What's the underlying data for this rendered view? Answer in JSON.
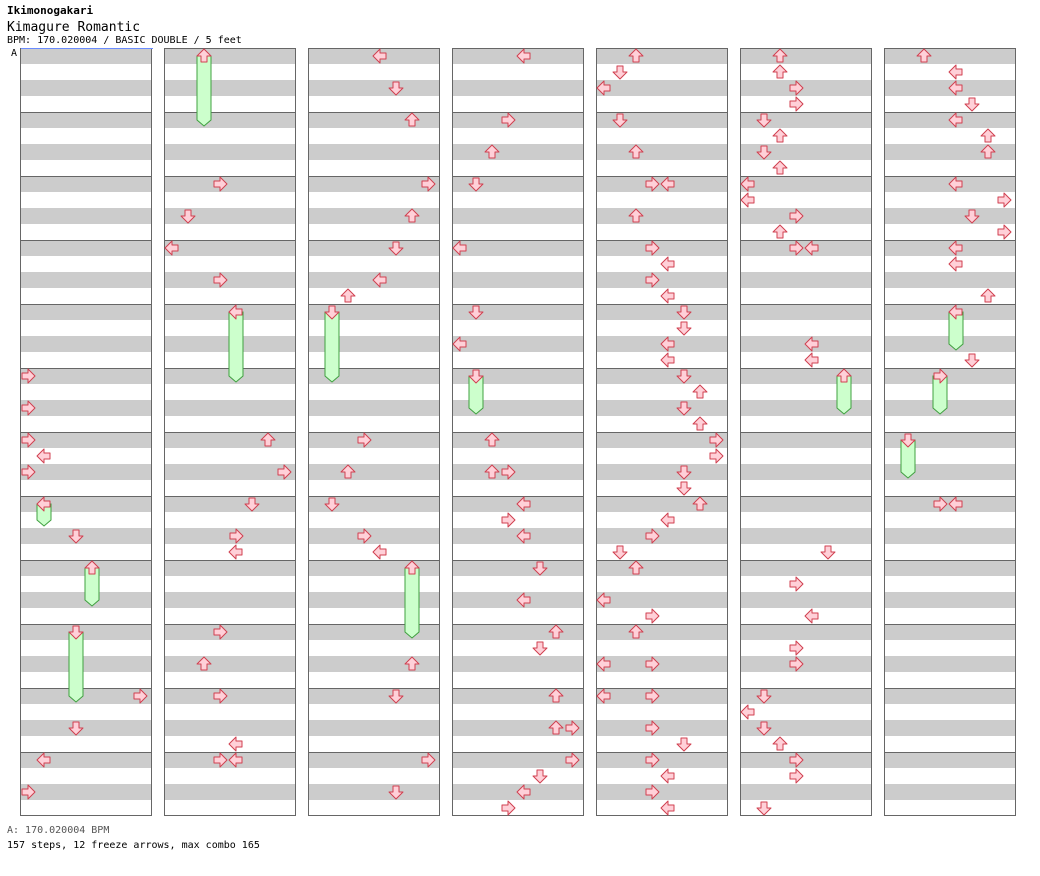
{
  "header": {
    "artist": "Ikimonogakari",
    "title": "Kimagure Romantic",
    "info": "BPM: 170.020004 / BASIC DOUBLE / 5 feet"
  },
  "bpm_marker": "A",
  "footer": {
    "bpm_legend": "A: 170.020004 BPM",
    "stats": "157 steps, 12 freeze arrows, max combo 165"
  },
  "colors": {
    "stripe": "#cccccc",
    "arrow_fill": "#ffd0d8",
    "arrow_stroke": "#d04050",
    "freeze_fill": "#ccffcc",
    "freeze_stroke": "#40a040",
    "bpm_line": "#6a8cff"
  },
  "chart_data": {
    "type": "step-chart",
    "style": "double",
    "lanes": 8,
    "columns": 7,
    "measures_per_column": 12,
    "rows_per_measure": 8,
    "notes": [
      {
        "col": 0,
        "m": 5,
        "r": 0,
        "lane": 0,
        "dir": "right"
      },
      {
        "col": 0,
        "m": 5,
        "r": 2,
        "lane": 0,
        "dir": "right"
      },
      {
        "col": 0,
        "m": 6,
        "r": 0,
        "lane": 0,
        "dir": "right"
      },
      {
        "col": 0,
        "m": 6,
        "r": 1,
        "lane": 1,
        "dir": "left"
      },
      {
        "col": 0,
        "m": 6,
        "r": 2,
        "lane": 0,
        "dir": "right"
      },
      {
        "col": 0,
        "m": 7,
        "r": 0,
        "lane": 1,
        "dir": "left",
        "freeze": 1
      },
      {
        "col": 0,
        "m": 7,
        "r": 2,
        "lane": 3,
        "dir": "down"
      },
      {
        "col": 0,
        "m": 8,
        "r": 0,
        "lane": 4,
        "dir": "up",
        "freeze": 2
      },
      {
        "col": 0,
        "m": 9,
        "r": 0,
        "lane": 3,
        "dir": "down",
        "freeze": 4
      },
      {
        "col": 0,
        "m": 10,
        "r": 0,
        "lane": 7,
        "dir": "right"
      },
      {
        "col": 0,
        "m": 10,
        "r": 2,
        "lane": 3,
        "dir": "down"
      },
      {
        "col": 0,
        "m": 11,
        "r": 0,
        "lane": 1,
        "dir": "left"
      },
      {
        "col": 0,
        "m": 11,
        "r": 2,
        "lane": 0,
        "dir": "right"
      },
      {
        "col": 1,
        "m": 0,
        "r": 0,
        "lane": 2,
        "dir": "up",
        "freeze": 4
      },
      {
        "col": 1,
        "m": 2,
        "r": 0,
        "lane": 3,
        "dir": "right"
      },
      {
        "col": 1,
        "m": 2,
        "r": 2,
        "lane": 1,
        "dir": "down"
      },
      {
        "col": 1,
        "m": 3,
        "r": 0,
        "lane": 0,
        "dir": "left"
      },
      {
        "col": 1,
        "m": 3,
        "r": 2,
        "lane": 3,
        "dir": "right"
      },
      {
        "col": 1,
        "m": 4,
        "r": 0,
        "lane": 4,
        "dir": "left",
        "freeze": 4
      },
      {
        "col": 1,
        "m": 6,
        "r": 0,
        "lane": 6,
        "dir": "up"
      },
      {
        "col": 1,
        "m": 6,
        "r": 2,
        "lane": 7,
        "dir": "right"
      },
      {
        "col": 1,
        "m": 7,
        "r": 0,
        "lane": 5,
        "dir": "down"
      },
      {
        "col": 1,
        "m": 7,
        "r": 2,
        "lane": 4,
        "dir": "right"
      },
      {
        "col": 1,
        "m": 7,
        "r": 3,
        "lane": 4,
        "dir": "left"
      },
      {
        "col": 1,
        "m": 9,
        "r": 0,
        "lane": 3,
        "dir": "right"
      },
      {
        "col": 1,
        "m": 9,
        "r": 2,
        "lane": 2,
        "dir": "up"
      },
      {
        "col": 1,
        "m": 10,
        "r": 0,
        "lane": 3,
        "dir": "right"
      },
      {
        "col": 1,
        "m": 10,
        "r": 3,
        "lane": 4,
        "dir": "left"
      },
      {
        "col": 1,
        "m": 11,
        "r": 0,
        "lane": 3,
        "dir": "right"
      },
      {
        "col": 1,
        "m": 11,
        "r": 0,
        "lane": 4,
        "dir": "left"
      },
      {
        "col": 2,
        "m": 0,
        "r": 0,
        "lane": 4,
        "dir": "left"
      },
      {
        "col": 2,
        "m": 0,
        "r": 2,
        "lane": 5,
        "dir": "down"
      },
      {
        "col": 2,
        "m": 1,
        "r": 0,
        "lane": 6,
        "dir": "up"
      },
      {
        "col": 2,
        "m": 2,
        "r": 0,
        "lane": 7,
        "dir": "right"
      },
      {
        "col": 2,
        "m": 2,
        "r": 2,
        "lane": 6,
        "dir": "up"
      },
      {
        "col": 2,
        "m": 3,
        "r": 0,
        "lane": 5,
        "dir": "down"
      },
      {
        "col": 2,
        "m": 3,
        "r": 2,
        "lane": 4,
        "dir": "left"
      },
      {
        "col": 2,
        "m": 3,
        "r": 3,
        "lane": 2,
        "dir": "up"
      },
      {
        "col": 2,
        "m": 4,
        "r": 0,
        "lane": 1,
        "dir": "down",
        "freeze": 4
      },
      {
        "col": 2,
        "m": 6,
        "r": 0,
        "lane": 3,
        "dir": "right"
      },
      {
        "col": 2,
        "m": 6,
        "r": 2,
        "lane": 2,
        "dir": "up"
      },
      {
        "col": 2,
        "m": 7,
        "r": 0,
        "lane": 1,
        "dir": "down"
      },
      {
        "col": 2,
        "m": 7,
        "r": 2,
        "lane": 3,
        "dir": "right"
      },
      {
        "col": 2,
        "m": 7,
        "r": 3,
        "lane": 4,
        "dir": "left"
      },
      {
        "col": 2,
        "m": 8,
        "r": 0,
        "lane": 6,
        "dir": "up",
        "freeze": 4
      },
      {
        "col": 2,
        "m": 9,
        "r": 2,
        "lane": 6,
        "dir": "up"
      },
      {
        "col": 2,
        "m": 10,
        "r": 0,
        "lane": 5,
        "dir": "down"
      },
      {
        "col": 2,
        "m": 11,
        "r": 0,
        "lane": 7,
        "dir": "right"
      },
      {
        "col": 2,
        "m": 11,
        "r": 2,
        "lane": 5,
        "dir": "down"
      },
      {
        "col": 3,
        "m": 0,
        "r": 0,
        "lane": 4,
        "dir": "left"
      },
      {
        "col": 3,
        "m": 1,
        "r": 0,
        "lane": 3,
        "dir": "right"
      },
      {
        "col": 3,
        "m": 1,
        "r": 2,
        "lane": 2,
        "dir": "up"
      },
      {
        "col": 3,
        "m": 2,
        "r": 0,
        "lane": 1,
        "dir": "down"
      },
      {
        "col": 3,
        "m": 3,
        "r": 0,
        "lane": 0,
        "dir": "left"
      },
      {
        "col": 3,
        "m": 4,
        "r": 0,
        "lane": 1,
        "dir": "down"
      },
      {
        "col": 3,
        "m": 4,
        "r": 2,
        "lane": 0,
        "dir": "left"
      },
      {
        "col": 3,
        "m": 5,
        "r": 0,
        "lane": 1,
        "dir": "down",
        "freeze": 2
      },
      {
        "col": 3,
        "m": 6,
        "r": 0,
        "lane": 2,
        "dir": "up"
      },
      {
        "col": 3,
        "m": 6,
        "r": 2,
        "lane": 2,
        "dir": "up"
      },
      {
        "col": 3,
        "m": 6,
        "r": 2,
        "lane": 3,
        "dir": "right"
      },
      {
        "col": 3,
        "m": 7,
        "r": 0,
        "lane": 4,
        "dir": "left"
      },
      {
        "col": 3,
        "m": 7,
        "r": 1,
        "lane": 3,
        "dir": "right"
      },
      {
        "col": 3,
        "m": 7,
        "r": 2,
        "lane": 4,
        "dir": "left"
      },
      {
        "col": 3,
        "m": 8,
        "r": 0,
        "lane": 5,
        "dir": "down"
      },
      {
        "col": 3,
        "m": 8,
        "r": 2,
        "lane": 4,
        "dir": "left"
      },
      {
        "col": 3,
        "m": 9,
        "r": 0,
        "lane": 6,
        "dir": "up"
      },
      {
        "col": 3,
        "m": 9,
        "r": 1,
        "lane": 5,
        "dir": "down"
      },
      {
        "col": 3,
        "m": 10,
        "r": 0,
        "lane": 6,
        "dir": "up"
      },
      {
        "col": 3,
        "m": 10,
        "r": 2,
        "lane": 6,
        "dir": "up"
      },
      {
        "col": 3,
        "m": 10,
        "r": 2,
        "lane": 7,
        "dir": "right"
      },
      {
        "col": 3,
        "m": 11,
        "r": 0,
        "lane": 7,
        "dir": "right"
      },
      {
        "col": 3,
        "m": 11,
        "r": 1,
        "lane": 5,
        "dir": "down"
      },
      {
        "col": 3,
        "m": 11,
        "r": 2,
        "lane": 4,
        "dir": "left"
      },
      {
        "col": 3,
        "m": 11,
        "r": 3,
        "lane": 3,
        "dir": "right"
      },
      {
        "col": 4,
        "m": 0,
        "r": 0,
        "lane": 2,
        "dir": "up"
      },
      {
        "col": 4,
        "m": 0,
        "r": 1,
        "lane": 1,
        "dir": "down"
      },
      {
        "col": 4,
        "m": 0,
        "r": 2,
        "lane": 0,
        "dir": "left"
      },
      {
        "col": 4,
        "m": 1,
        "r": 0,
        "lane": 1,
        "dir": "down"
      },
      {
        "col": 4,
        "m": 1,
        "r": 2,
        "lane": 2,
        "dir": "up"
      },
      {
        "col": 4,
        "m": 2,
        "r": 0,
        "lane": 3,
        "dir": "right"
      },
      {
        "col": 4,
        "m": 2,
        "r": 0,
        "lane": 4,
        "dir": "left"
      },
      {
        "col": 4,
        "m": 2,
        "r": 2,
        "lane": 2,
        "dir": "up"
      },
      {
        "col": 4,
        "m": 3,
        "r": 0,
        "lane": 3,
        "dir": "right"
      },
      {
        "col": 4,
        "m": 3,
        "r": 1,
        "lane": 4,
        "dir": "left"
      },
      {
        "col": 4,
        "m": 3,
        "r": 2,
        "lane": 3,
        "dir": "right"
      },
      {
        "col": 4,
        "m": 3,
        "r": 3,
        "lane": 4,
        "dir": "left"
      },
      {
        "col": 4,
        "m": 4,
        "r": 0,
        "lane": 5,
        "dir": "down"
      },
      {
        "col": 4,
        "m": 4,
        "r": 1,
        "lane": 5,
        "dir": "down"
      },
      {
        "col": 4,
        "m": 4,
        "r": 2,
        "lane": 4,
        "dir": "left"
      },
      {
        "col": 4,
        "m": 4,
        "r": 3,
        "lane": 4,
        "dir": "left"
      },
      {
        "col": 4,
        "m": 5,
        "r": 0,
        "lane": 5,
        "dir": "down"
      },
      {
        "col": 4,
        "m": 5,
        "r": 1,
        "lane": 6,
        "dir": "up"
      },
      {
        "col": 4,
        "m": 5,
        "r": 2,
        "lane": 5,
        "dir": "down"
      },
      {
        "col": 4,
        "m": 5,
        "r": 3,
        "lane": 6,
        "dir": "up"
      },
      {
        "col": 4,
        "m": 6,
        "r": 0,
        "lane": 7,
        "dir": "right"
      },
      {
        "col": 4,
        "m": 6,
        "r": 1,
        "lane": 7,
        "dir": "right"
      },
      {
        "col": 4,
        "m": 6,
        "r": 2,
        "lane": 5,
        "dir": "down"
      },
      {
        "col": 4,
        "m": 6,
        "r": 3,
        "lane": 5,
        "dir": "down"
      },
      {
        "col": 4,
        "m": 7,
        "r": 0,
        "lane": 6,
        "dir": "up"
      },
      {
        "col": 4,
        "m": 7,
        "r": 1,
        "lane": 4,
        "dir": "left"
      },
      {
        "col": 4,
        "m": 7,
        "r": 2,
        "lane": 3,
        "dir": "right"
      },
      {
        "col": 4,
        "m": 7,
        "r": 3,
        "lane": 1,
        "dir": "down"
      },
      {
        "col": 4,
        "m": 8,
        "r": 0,
        "lane": 2,
        "dir": "up"
      },
      {
        "col": 4,
        "m": 8,
        "r": 2,
        "lane": 0,
        "dir": "left"
      },
      {
        "col": 4,
        "m": 8,
        "r": 3,
        "lane": 3,
        "dir": "right"
      },
      {
        "col": 4,
        "m": 9,
        "r": 0,
        "lane": 2,
        "dir": "up"
      },
      {
        "col": 4,
        "m": 9,
        "r": 2,
        "lane": 0,
        "dir": "left"
      },
      {
        "col": 4,
        "m": 9,
        "r": 2,
        "lane": 3,
        "dir": "right"
      },
      {
        "col": 4,
        "m": 10,
        "r": 0,
        "lane": 0,
        "dir": "left"
      },
      {
        "col": 4,
        "m": 10,
        "r": 0,
        "lane": 3,
        "dir": "right"
      },
      {
        "col": 4,
        "m": 10,
        "r": 2,
        "lane": 3,
        "dir": "right"
      },
      {
        "col": 4,
        "m": 10,
        "r": 3,
        "lane": 5,
        "dir": "down"
      },
      {
        "col": 4,
        "m": 11,
        "r": 0,
        "lane": 3,
        "dir": "right"
      },
      {
        "col": 4,
        "m": 11,
        "r": 1,
        "lane": 4,
        "dir": "left"
      },
      {
        "col": 4,
        "m": 11,
        "r": 2,
        "lane": 3,
        "dir": "right"
      },
      {
        "col": 4,
        "m": 11,
        "r": 3,
        "lane": 4,
        "dir": "left"
      },
      {
        "col": 5,
        "m": 0,
        "r": 0,
        "lane": 2,
        "dir": "up"
      },
      {
        "col": 5,
        "m": 0,
        "r": 1,
        "lane": 2,
        "dir": "up"
      },
      {
        "col": 5,
        "m": 0,
        "r": 2,
        "lane": 3,
        "dir": "right"
      },
      {
        "col": 5,
        "m": 0,
        "r": 3,
        "lane": 3,
        "dir": "right"
      },
      {
        "col": 5,
        "m": 1,
        "r": 0,
        "lane": 1,
        "dir": "down"
      },
      {
        "col": 5,
        "m": 1,
        "r": 1,
        "lane": 2,
        "dir": "up"
      },
      {
        "col": 5,
        "m": 1,
        "r": 2,
        "lane": 1,
        "dir": "down"
      },
      {
        "col": 5,
        "m": 1,
        "r": 3,
        "lane": 2,
        "dir": "up"
      },
      {
        "col": 5,
        "m": 2,
        "r": 0,
        "lane": 0,
        "dir": "left"
      },
      {
        "col": 5,
        "m": 2,
        "r": 1,
        "lane": 0,
        "dir": "left"
      },
      {
        "col": 5,
        "m": 2,
        "r": 2,
        "lane": 3,
        "dir": "right"
      },
      {
        "col": 5,
        "m": 2,
        "r": 3,
        "lane": 2,
        "dir": "up"
      },
      {
        "col": 5,
        "m": 3,
        "r": 0,
        "lane": 3,
        "dir": "right"
      },
      {
        "col": 5,
        "m": 3,
        "r": 0,
        "lane": 4,
        "dir": "left"
      },
      {
        "col": 5,
        "m": 4,
        "r": 2,
        "lane": 4,
        "dir": "left"
      },
      {
        "col": 5,
        "m": 4,
        "r": 3,
        "lane": 4,
        "dir": "left"
      },
      {
        "col": 5,
        "m": 5,
        "r": 0,
        "lane": 6,
        "dir": "up",
        "freeze": 2
      },
      {
        "col": 5,
        "m": 7,
        "r": 3,
        "lane": 5,
        "dir": "down"
      },
      {
        "col": 5,
        "m": 8,
        "r": 1,
        "lane": 3,
        "dir": "right"
      },
      {
        "col": 5,
        "m": 8,
        "r": 3,
        "lane": 4,
        "dir": "left"
      },
      {
        "col": 5,
        "m": 9,
        "r": 1,
        "lane": 3,
        "dir": "right"
      },
      {
        "col": 5,
        "m": 9,
        "r": 2,
        "lane": 3,
        "dir": "right"
      },
      {
        "col": 5,
        "m": 10,
        "r": 0,
        "lane": 1,
        "dir": "down"
      },
      {
        "col": 5,
        "m": 10,
        "r": 1,
        "lane": 0,
        "dir": "left"
      },
      {
        "col": 5,
        "m": 10,
        "r": 2,
        "lane": 1,
        "dir": "down"
      },
      {
        "col": 5,
        "m": 10,
        "r": 3,
        "lane": 2,
        "dir": "up"
      },
      {
        "col": 5,
        "m": 11,
        "r": 0,
        "lane": 3,
        "dir": "right"
      },
      {
        "col": 5,
        "m": 11,
        "r": 1,
        "lane": 3,
        "dir": "right"
      },
      {
        "col": 5,
        "m": 11,
        "r": 3,
        "lane": 1,
        "dir": "down"
      },
      {
        "col": 6,
        "m": 0,
        "r": 0,
        "lane": 2,
        "dir": "up"
      },
      {
        "col": 6,
        "m": 0,
        "r": 1,
        "lane": 4,
        "dir": "left"
      },
      {
        "col": 6,
        "m": 0,
        "r": 2,
        "lane": 4,
        "dir": "left"
      },
      {
        "col": 6,
        "m": 0,
        "r": 3,
        "lane": 5,
        "dir": "down"
      },
      {
        "col": 6,
        "m": 1,
        "r": 0,
        "lane": 4,
        "dir": "left"
      },
      {
        "col": 6,
        "m": 1,
        "r": 1,
        "lane": 6,
        "dir": "up"
      },
      {
        "col": 6,
        "m": 1,
        "r": 2,
        "lane": 6,
        "dir": "up"
      },
      {
        "col": 6,
        "m": 2,
        "r": 0,
        "lane": 4,
        "dir": "left"
      },
      {
        "col": 6,
        "m": 2,
        "r": 1,
        "lane": 7,
        "dir": "right"
      },
      {
        "col": 6,
        "m": 2,
        "r": 2,
        "lane": 5,
        "dir": "down"
      },
      {
        "col": 6,
        "m": 2,
        "r": 3,
        "lane": 7,
        "dir": "right"
      },
      {
        "col": 6,
        "m": 3,
        "r": 0,
        "lane": 4,
        "dir": "left"
      },
      {
        "col": 6,
        "m": 3,
        "r": 1,
        "lane": 4,
        "dir": "left"
      },
      {
        "col": 6,
        "m": 3,
        "r": 3,
        "lane": 6,
        "dir": "up"
      },
      {
        "col": 6,
        "m": 4,
        "r": 0,
        "lane": 4,
        "dir": "left",
        "freeze": 2
      },
      {
        "col": 6,
        "m": 4,
        "r": 3,
        "lane": 5,
        "dir": "down"
      },
      {
        "col": 6,
        "m": 5,
        "r": 0,
        "lane": 3,
        "dir": "right",
        "freeze": 2
      },
      {
        "col": 6,
        "m": 6,
        "r": 0,
        "lane": 1,
        "dir": "down",
        "freeze": 2
      },
      {
        "col": 6,
        "m": 7,
        "r": 0,
        "lane": 3,
        "dir": "right"
      },
      {
        "col": 6,
        "m": 7,
        "r": 0,
        "lane": 4,
        "dir": "left"
      }
    ]
  }
}
